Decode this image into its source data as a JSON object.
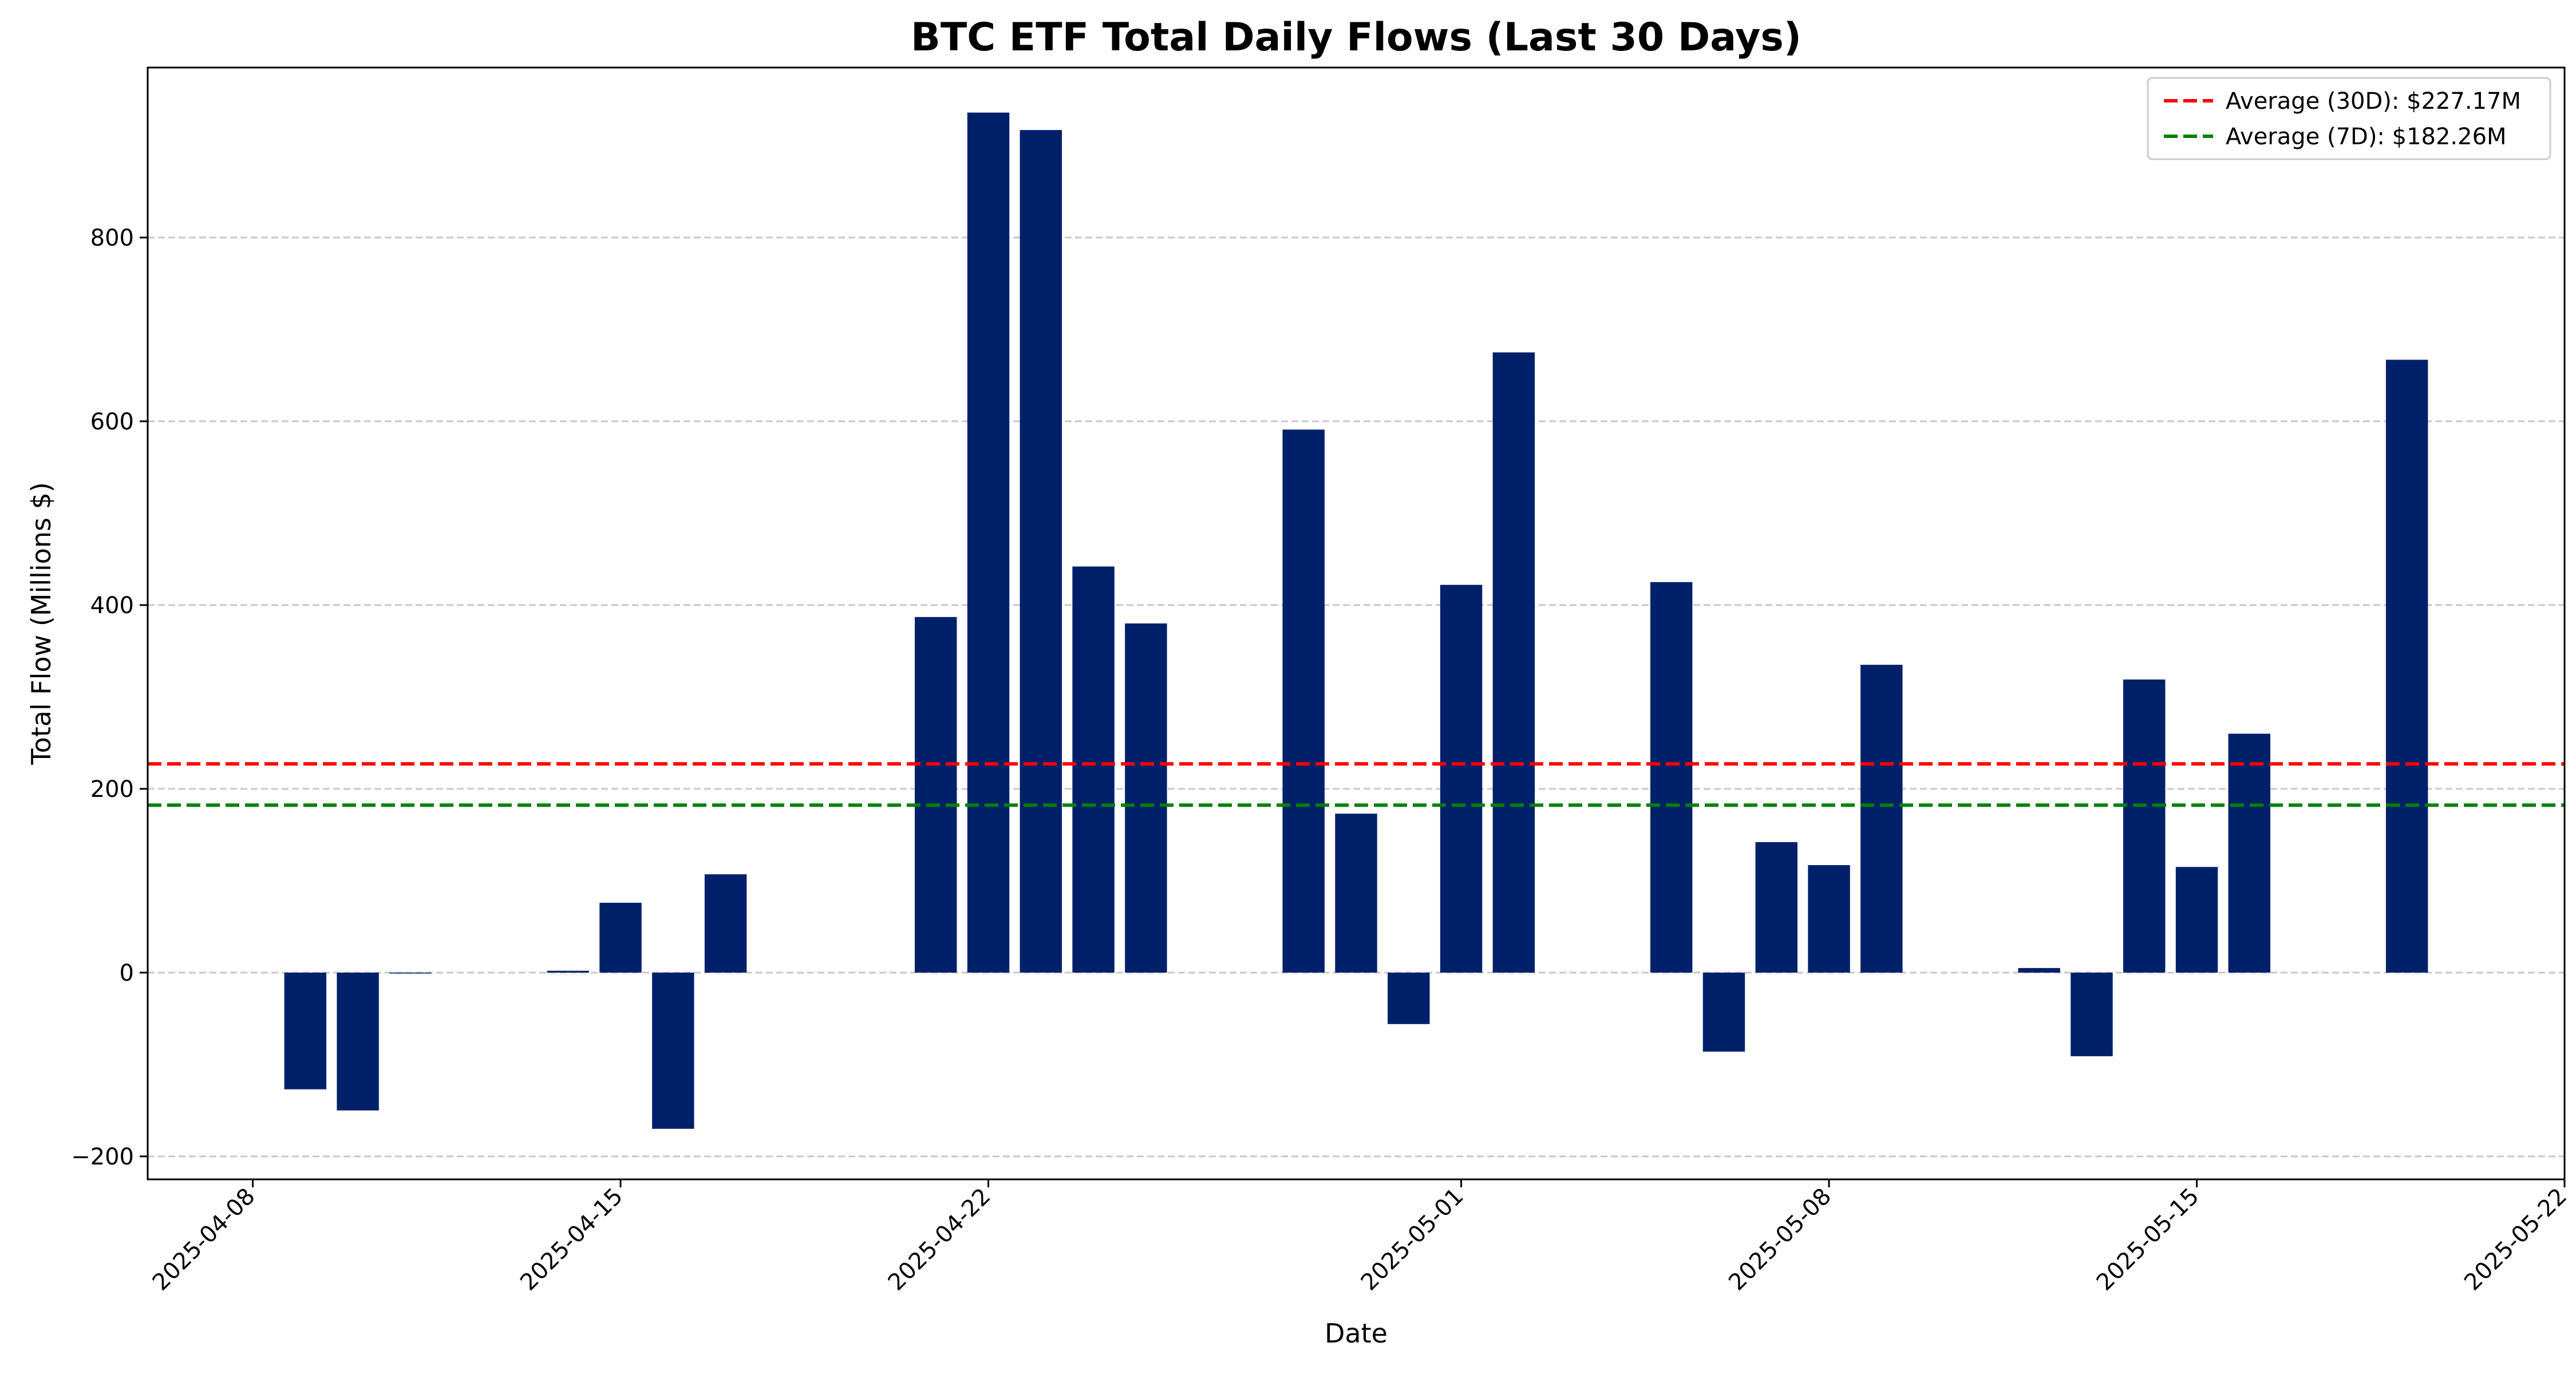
{
  "chart_data": {
    "type": "bar",
    "title": "BTC ETF Total Daily Flows (Last 30 Days)",
    "xlabel": "Date",
    "ylabel": "Total Flow (Millions $)",
    "xlim": [
      "2025-04-06",
      "2025-05-22"
    ],
    "ylim": [
      -225,
      985
    ],
    "yticks": [
      -200,
      0,
      200,
      400,
      600,
      800
    ],
    "ytick_labels": [
      "−200",
      "0",
      "200",
      "400",
      "600",
      "800"
    ],
    "xticks": [
      "2025-04-08",
      "2025-04-15",
      "2025-04-22",
      "2025-05-01",
      "2025-05-08",
      "2025-05-15",
      "2025-05-22"
    ],
    "grid": "y-dashed",
    "bar_color": "#00206a",
    "data": [
      {
        "date": "2025-04-09",
        "value": -127
      },
      {
        "date": "2025-04-10",
        "value": -150
      },
      {
        "date": "2025-04-11",
        "value": -1
      },
      {
        "date": "2025-04-14",
        "value": 2
      },
      {
        "date": "2025-04-15",
        "value": 76
      },
      {
        "date": "2025-04-16",
        "value": -170
      },
      {
        "date": "2025-04-17",
        "value": 107
      },
      {
        "date": "2025-04-21",
        "value": 387
      },
      {
        "date": "2025-04-22",
        "value": 936
      },
      {
        "date": "2025-04-23",
        "value": 917
      },
      {
        "date": "2025-04-24",
        "value": 442
      },
      {
        "date": "2025-04-25",
        "value": 380
      },
      {
        "date": "2025-04-28",
        "value": 591
      },
      {
        "date": "2025-04-29",
        "value": 173
      },
      {
        "date": "2025-04-30",
        "value": -56
      },
      {
        "date": "2025-05-01",
        "value": 422
      },
      {
        "date": "2025-05-02",
        "value": 675
      },
      {
        "date": "2025-05-05",
        "value": 425
      },
      {
        "date": "2025-05-06",
        "value": -86
      },
      {
        "date": "2025-05-07",
        "value": 142
      },
      {
        "date": "2025-05-08",
        "value": 117
      },
      {
        "date": "2025-05-09",
        "value": 335
      },
      {
        "date": "2025-05-12",
        "value": 5
      },
      {
        "date": "2025-05-13",
        "value": -91
      },
      {
        "date": "2025-05-14",
        "value": 319
      },
      {
        "date": "2025-05-15",
        "value": 115
      },
      {
        "date": "2025-05-16",
        "value": 260
      },
      {
        "date": "2025-05-19",
        "value": 667
      }
    ],
    "reference_lines": [
      {
        "name": "Average (30D): $227.17M",
        "value": 227.17,
        "color": "#ff0000"
      },
      {
        "name": "Average (7D): $182.26M",
        "value": 182.26,
        "color": "#008000"
      }
    ],
    "legend_position": "top-right"
  }
}
